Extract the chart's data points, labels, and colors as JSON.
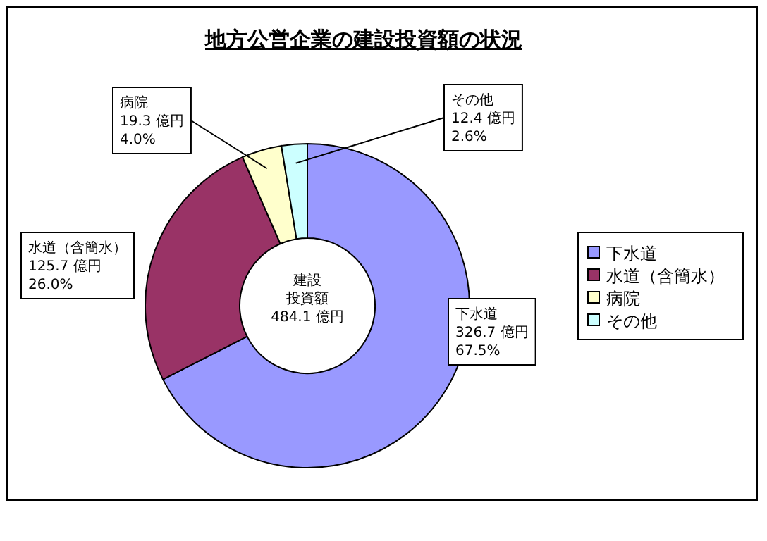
{
  "chart_data": {
    "type": "donut",
    "title": "地方公営企業の建設投資額の状況",
    "categories": [
      "下水道",
      "水道（含簡水）",
      "病院",
      "その他"
    ],
    "values": [
      326.7,
      125.7,
      19.3,
      12.4
    ],
    "colors": [
      "#9999ff",
      "#993366",
      "#ffffcc",
      "#ccffff"
    ],
    "value_labels": [
      "326.7 億円\n67.5%",
      "125.7 億円\n26.0%",
      "19.3 億円\n4.0%",
      "12.4 億円\n2.6%"
    ],
    "annotations": [
      "建設",
      "投資額",
      "484.1 億円"
    ],
    "legend": "right"
  }
}
